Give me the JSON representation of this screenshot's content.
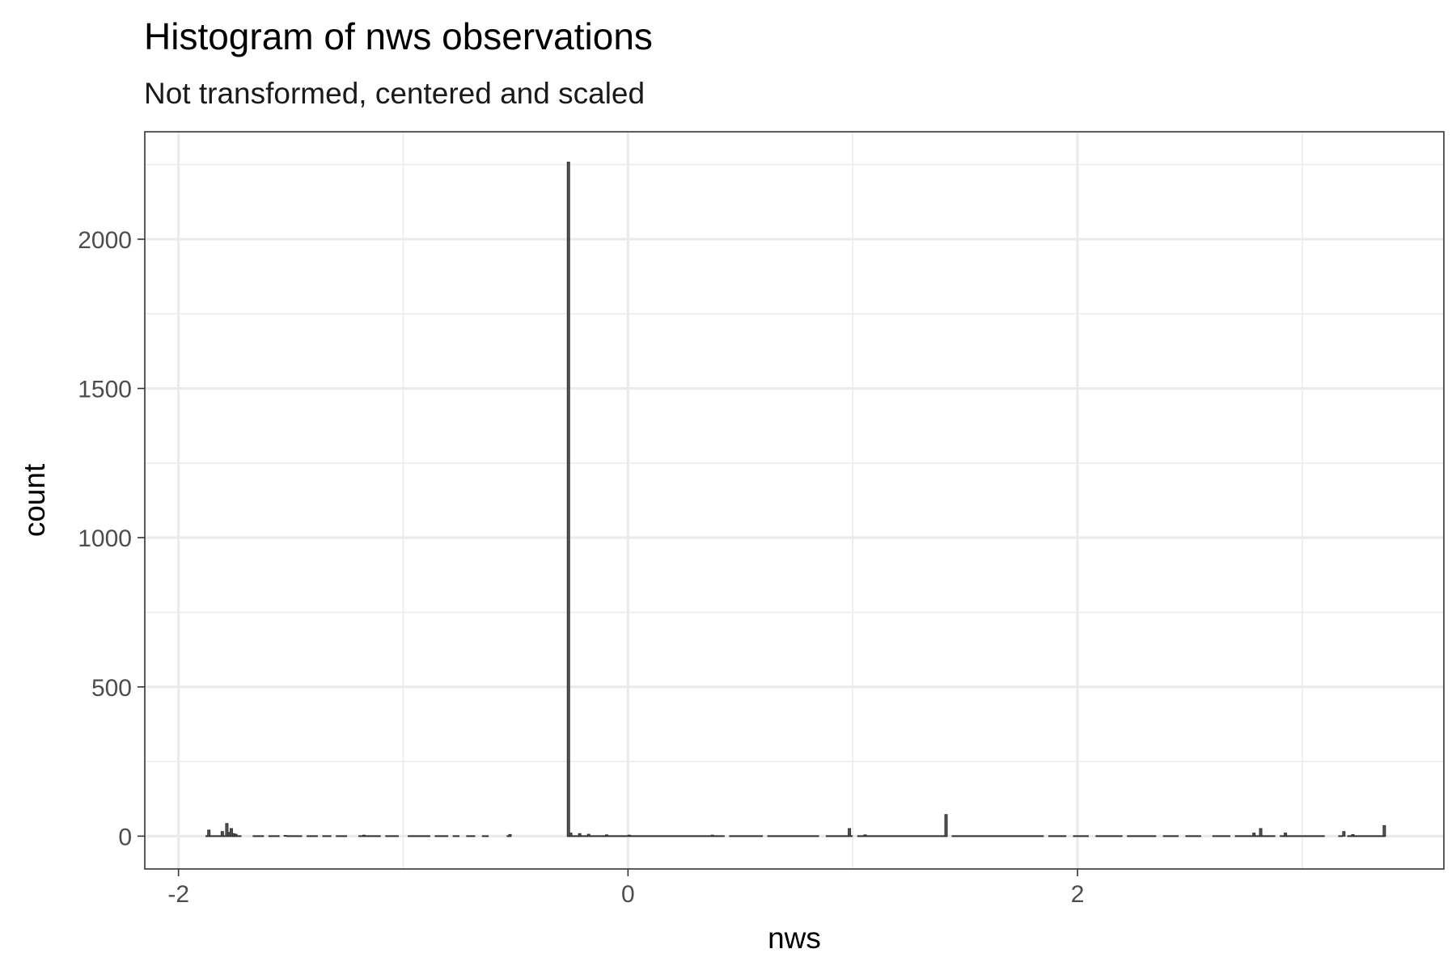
{
  "chart_data": {
    "type": "bar",
    "title": "Histogram of nws observations",
    "subtitle": "Not transformed, centered and scaled",
    "xlabel": "nws",
    "ylabel": "count",
    "xlim": [
      -2.15,
      3.63
    ],
    "ylim": [
      -110,
      2360
    ],
    "x_ticks": [
      -2,
      0,
      2
    ],
    "x_tick_labels": [
      "-2",
      "0",
      "2"
    ],
    "x_minor_ticks": [
      -1,
      1,
      3
    ],
    "y_ticks": [
      0,
      500,
      1000,
      1500,
      2000
    ],
    "y_tick_labels": [
      "0",
      "500",
      "1000",
      "1500",
      "2000"
    ],
    "y_minor_ticks": [
      250,
      750,
      1250,
      1750,
      2250
    ],
    "grid": true,
    "bin_width": 0.01,
    "bar_stroke": "#333333",
    "bar_fill": "#595959",
    "bins": [
      {
        "x": -1.87,
        "count": 20
      },
      {
        "x": -1.81,
        "count": 15
      },
      {
        "x": -1.79,
        "count": 42
      },
      {
        "x": -1.78,
        "count": 12
      },
      {
        "x": -1.77,
        "count": 25
      },
      {
        "x": -1.76,
        "count": 8
      },
      {
        "x": -1.75,
        "count": 6
      },
      {
        "x": -1.53,
        "count": 2
      },
      {
        "x": -1.18,
        "count": 3
      },
      {
        "x": -0.53,
        "count": 5
      },
      {
        "x": -0.27,
        "count": 2258
      },
      {
        "x": -0.26,
        "count": 10
      },
      {
        "x": -0.22,
        "count": 8
      },
      {
        "x": -0.18,
        "count": 6
      },
      {
        "x": -0.1,
        "count": 4
      },
      {
        "x": 0.0,
        "count": 3
      },
      {
        "x": 0.37,
        "count": 3
      },
      {
        "x": 0.98,
        "count": 25
      },
      {
        "x": 1.05,
        "count": 4
      },
      {
        "x": 1.41,
        "count": 72
      },
      {
        "x": 2.78,
        "count": 10
      },
      {
        "x": 2.81,
        "count": 25
      },
      {
        "x": 2.92,
        "count": 10
      },
      {
        "x": 3.18,
        "count": 15
      },
      {
        "x": 3.22,
        "count": 5
      },
      {
        "x": 3.36,
        "count": 35
      }
    ],
    "baseline_segments": [
      [
        -1.88,
        -1.72
      ],
      [
        -1.67,
        -1.62
      ],
      [
        -1.6,
        -1.55
      ],
      [
        -1.52,
        -1.45
      ],
      [
        -1.43,
        -1.38
      ],
      [
        -1.36,
        -1.32
      ],
      [
        -1.3,
        -1.25
      ],
      [
        -1.2,
        -1.1
      ],
      [
        -1.08,
        -1.02
      ],
      [
        -0.98,
        -0.88
      ],
      [
        -0.86,
        -0.8
      ],
      [
        -0.78,
        -0.75
      ],
      [
        -0.72,
        -0.68
      ],
      [
        -0.65,
        -0.62
      ],
      [
        -0.54,
        -0.52
      ],
      [
        -0.27,
        0.43
      ],
      [
        0.45,
        0.6
      ],
      [
        0.62,
        0.85
      ],
      [
        0.88,
        1.0
      ],
      [
        1.02,
        1.42
      ],
      [
        1.44,
        1.85
      ],
      [
        1.87,
        1.95
      ],
      [
        1.98,
        2.05
      ],
      [
        2.08,
        2.2
      ],
      [
        2.22,
        2.35
      ],
      [
        2.38,
        2.45
      ],
      [
        2.48,
        2.55
      ],
      [
        2.6,
        2.68
      ],
      [
        2.7,
        2.88
      ],
      [
        2.9,
        3.1
      ],
      [
        3.16,
        3.18
      ],
      [
        3.2,
        3.37
      ]
    ]
  }
}
